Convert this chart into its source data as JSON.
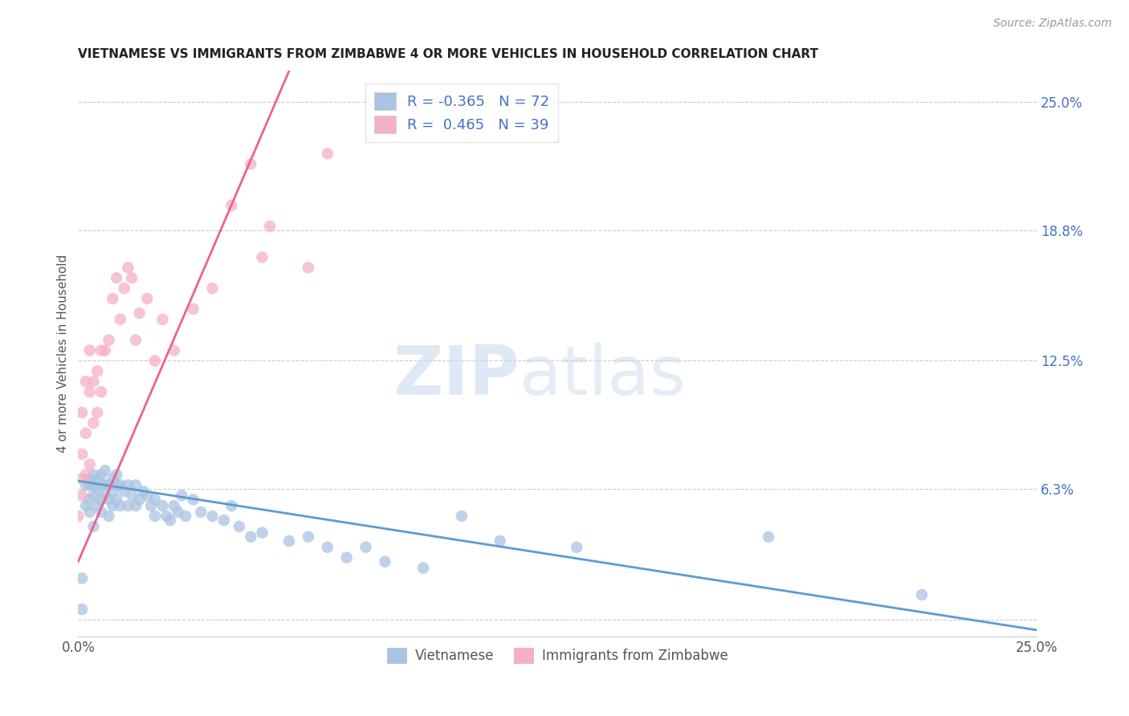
{
  "title": "VIETNAMESE VS IMMIGRANTS FROM ZIMBABWE 4 OR MORE VEHICLES IN HOUSEHOLD CORRELATION CHART",
  "source": "Source: ZipAtlas.com",
  "ylabel": "4 or more Vehicles in Household",
  "xmin": 0.0,
  "xmax": 0.25,
  "ymin": -0.008,
  "ymax": 0.265,
  "y_tick_vals_right": [
    0.25,
    0.188,
    0.125,
    0.063,
    0.0
  ],
  "y_tick_labels_right": [
    "25.0%",
    "18.8%",
    "12.5%",
    "6.3%",
    ""
  ],
  "legend_label1": "Vietnamese",
  "legend_label2": "Immigrants from Zimbabwe",
  "r1": -0.365,
  "n1": 72,
  "r2": 0.465,
  "n2": 39,
  "color_viet": "#aac4e2",
  "color_zimb": "#f5b0c5",
  "line_color_viet": "#5b9bd5",
  "line_color_zimb": "#f06090",
  "viet_x": [
    0.001,
    0.001,
    0.002,
    0.002,
    0.003,
    0.003,
    0.003,
    0.003,
    0.004,
    0.004,
    0.004,
    0.004,
    0.005,
    0.005,
    0.005,
    0.006,
    0.006,
    0.006,
    0.006,
    0.007,
    0.007,
    0.007,
    0.008,
    0.008,
    0.008,
    0.009,
    0.009,
    0.009,
    0.01,
    0.01,
    0.01,
    0.011,
    0.011,
    0.012,
    0.013,
    0.013,
    0.014,
    0.015,
    0.015,
    0.016,
    0.017,
    0.018,
    0.019,
    0.02,
    0.02,
    0.022,
    0.023,
    0.024,
    0.025,
    0.026,
    0.027,
    0.028,
    0.03,
    0.032,
    0.035,
    0.038,
    0.04,
    0.042,
    0.045,
    0.048,
    0.055,
    0.06,
    0.065,
    0.07,
    0.075,
    0.08,
    0.09,
    0.1,
    0.11,
    0.13,
    0.18,
    0.22
  ],
  "viet_y": [
    0.02,
    0.005,
    0.065,
    0.055,
    0.068,
    0.065,
    0.058,
    0.052,
    0.07,
    0.065,
    0.06,
    0.045,
    0.068,
    0.063,
    0.055,
    0.07,
    0.065,
    0.058,
    0.052,
    0.072,
    0.065,
    0.06,
    0.065,
    0.058,
    0.05,
    0.068,
    0.062,
    0.055,
    0.07,
    0.065,
    0.058,
    0.065,
    0.055,
    0.062,
    0.065,
    0.055,
    0.06,
    0.065,
    0.055,
    0.058,
    0.062,
    0.06,
    0.055,
    0.058,
    0.05,
    0.055,
    0.05,
    0.048,
    0.055,
    0.052,
    0.06,
    0.05,
    0.058,
    0.052,
    0.05,
    0.048,
    0.055,
    0.045,
    0.04,
    0.042,
    0.038,
    0.04,
    0.035,
    0.03,
    0.035,
    0.028,
    0.025,
    0.05,
    0.038,
    0.035,
    0.04,
    0.012
  ],
  "zimb_x": [
    0.0,
    0.001,
    0.001,
    0.001,
    0.001,
    0.002,
    0.002,
    0.002,
    0.003,
    0.003,
    0.003,
    0.004,
    0.004,
    0.005,
    0.005,
    0.006,
    0.006,
    0.007,
    0.008,
    0.009,
    0.01,
    0.011,
    0.012,
    0.013,
    0.014,
    0.015,
    0.016,
    0.018,
    0.02,
    0.022,
    0.025,
    0.03,
    0.035,
    0.04,
    0.045,
    0.048,
    0.05,
    0.06,
    0.065
  ],
  "zimb_y": [
    0.05,
    0.06,
    0.08,
    0.1,
    0.068,
    0.09,
    0.115,
    0.07,
    0.11,
    0.13,
    0.075,
    0.095,
    0.115,
    0.1,
    0.12,
    0.13,
    0.11,
    0.13,
    0.135,
    0.155,
    0.165,
    0.145,
    0.16,
    0.17,
    0.165,
    0.135,
    0.148,
    0.155,
    0.125,
    0.145,
    0.13,
    0.15,
    0.16,
    0.2,
    0.22,
    0.175,
    0.19,
    0.17,
    0.225
  ],
  "viet_line_x0": 0.0,
  "viet_line_x1": 0.25,
  "viet_line_y0": 0.067,
  "viet_line_y1": -0.005,
  "zimb_line_x0": 0.0,
  "zimb_line_x1": 0.055,
  "zimb_line_y0": 0.028,
  "zimb_line_y1": 0.265
}
